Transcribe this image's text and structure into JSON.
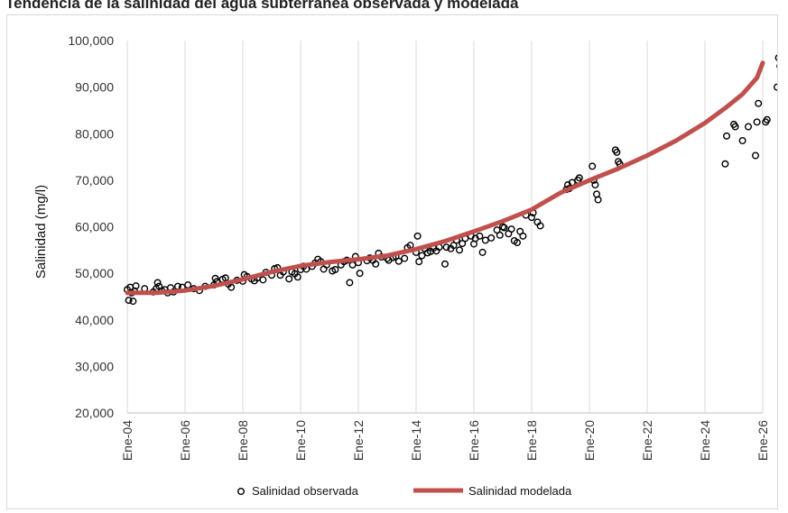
{
  "header": {
    "title": "Tendencia de la salinidad del agua subterránea observada y modelada"
  },
  "chart_data": {
    "type": "scatter",
    "xlabel": "",
    "ylabel": "Salinidad (mg/l)",
    "xlim": [
      2004,
      2026
    ],
    "ylim": [
      20000,
      100000
    ],
    "yticks": [
      20000,
      30000,
      40000,
      50000,
      60000,
      70000,
      80000,
      90000,
      100000
    ],
    "ytick_labels": [
      "20,000",
      "30,000",
      "40,000",
      "50,000",
      "60,000",
      "70,000",
      "80,000",
      "90,000",
      "100,000"
    ],
    "xticks": [
      2004,
      2006,
      2008,
      2010,
      2012,
      2014,
      2016,
      2018,
      2020,
      2022,
      2024,
      2026
    ],
    "xtick_labels": [
      "Ene-04",
      "Ene-06",
      "Ene-08",
      "Ene-10",
      "Ene-12",
      "Ene-14",
      "Ene-16",
      "Ene-18",
      "Ene-20",
      "Ene-22",
      "Ene-24",
      "Ene-26"
    ],
    "grid": "vertical",
    "legend": "bottom",
    "colors": {
      "model_line": "#c0504d",
      "observed_marker": "#000000",
      "grid": "#d9d9d9"
    },
    "series": [
      {
        "name": "Salinidad observada",
        "marker": "open-circle",
        "points": [
          [
            2004.0,
            46500
          ],
          [
            2004.05,
            44200
          ],
          [
            2004.1,
            47000
          ],
          [
            2004.15,
            45800
          ],
          [
            2004.2,
            44000
          ],
          [
            2004.25,
            46200
          ],
          [
            2004.3,
            47300
          ],
          [
            2004.6,
            46700
          ],
          [
            2004.9,
            46000
          ],
          [
            2005.0,
            46700
          ],
          [
            2005.05,
            48000
          ],
          [
            2005.1,
            47200
          ],
          [
            2005.2,
            46200
          ],
          [
            2005.3,
            46500
          ],
          [
            2005.4,
            45800
          ],
          [
            2005.5,
            46900
          ],
          [
            2005.6,
            46000
          ],
          [
            2005.75,
            47200
          ],
          [
            2005.9,
            47000
          ],
          [
            2006.1,
            47500
          ],
          [
            2006.3,
            46700
          ],
          [
            2006.5,
            46300
          ],
          [
            2006.7,
            47200
          ],
          [
            2007.0,
            47500
          ],
          [
            2007.05,
            48900
          ],
          [
            2007.1,
            48200
          ],
          [
            2007.3,
            48700
          ],
          [
            2007.4,
            49000
          ],
          [
            2007.5,
            47700
          ],
          [
            2007.6,
            47000
          ],
          [
            2007.8,
            48500
          ],
          [
            2008.0,
            48300
          ],
          [
            2008.05,
            49700
          ],
          [
            2008.15,
            49300
          ],
          [
            2008.3,
            48800
          ],
          [
            2008.4,
            48400
          ],
          [
            2008.5,
            49000
          ],
          [
            2008.7,
            48600
          ],
          [
            2008.8,
            50200
          ],
          [
            2009.0,
            49600
          ],
          [
            2009.1,
            51000
          ],
          [
            2009.2,
            51200
          ],
          [
            2009.3,
            49600
          ],
          [
            2009.4,
            50300
          ],
          [
            2009.6,
            48800
          ],
          [
            2009.7,
            50300
          ],
          [
            2009.8,
            49900
          ],
          [
            2009.9,
            49200
          ],
          [
            2010.0,
            50800
          ],
          [
            2010.1,
            51500
          ],
          [
            2010.2,
            50900
          ],
          [
            2010.4,
            51500
          ],
          [
            2010.5,
            52200
          ],
          [
            2010.6,
            53000
          ],
          [
            2010.7,
            52500
          ],
          [
            2010.8,
            50900
          ],
          [
            2010.9,
            51800
          ],
          [
            2011.1,
            50500
          ],
          [
            2011.2,
            50800
          ],
          [
            2011.4,
            51800
          ],
          [
            2011.5,
            52500
          ],
          [
            2011.6,
            52800
          ],
          [
            2011.7,
            48000
          ],
          [
            2011.8,
            51800
          ],
          [
            2011.9,
            53600
          ],
          [
            2012.0,
            52300
          ],
          [
            2012.05,
            50000
          ],
          [
            2012.3,
            52700
          ],
          [
            2012.4,
            53300
          ],
          [
            2012.5,
            52800
          ],
          [
            2012.6,
            52000
          ],
          [
            2012.7,
            54300
          ],
          [
            2012.8,
            53500
          ],
          [
            2013.0,
            53200
          ],
          [
            2013.05,
            52800
          ],
          [
            2013.2,
            53400
          ],
          [
            2013.3,
            53600
          ],
          [
            2013.4,
            52600
          ],
          [
            2013.6,
            53200
          ],
          [
            2013.7,
            55500
          ],
          [
            2013.8,
            56000
          ],
          [
            2014.0,
            54500
          ],
          [
            2014.05,
            58000
          ],
          [
            2014.1,
            52500
          ],
          [
            2014.2,
            53800
          ],
          [
            2014.3,
            55300
          ],
          [
            2014.4,
            54400
          ],
          [
            2014.5,
            54700
          ],
          [
            2014.6,
            55400
          ],
          [
            2014.7,
            54800
          ],
          [
            2014.8,
            55600
          ],
          [
            2015.0,
            52000
          ],
          [
            2015.05,
            55600
          ],
          [
            2015.2,
            55300
          ],
          [
            2015.3,
            56000
          ],
          [
            2015.4,
            57100
          ],
          [
            2015.5,
            55000
          ],
          [
            2015.6,
            56400
          ],
          [
            2015.7,
            57500
          ],
          [
            2015.9,
            58000
          ],
          [
            2016.0,
            56300
          ],
          [
            2016.05,
            57500
          ],
          [
            2016.2,
            58000
          ],
          [
            2016.3,
            54500
          ],
          [
            2016.4,
            57100
          ],
          [
            2016.6,
            57600
          ],
          [
            2016.8,
            59300
          ],
          [
            2016.9,
            58200
          ],
          [
            2017.0,
            60000
          ],
          [
            2017.05,
            59800
          ],
          [
            2017.2,
            58500
          ],
          [
            2017.3,
            59500
          ],
          [
            2017.4,
            57000
          ],
          [
            2017.5,
            56600
          ],
          [
            2017.6,
            59000
          ],
          [
            2017.7,
            58000
          ],
          [
            2017.8,
            62500
          ],
          [
            2018.0,
            62000
          ],
          [
            2018.05,
            63000
          ],
          [
            2018.2,
            61000
          ],
          [
            2018.3,
            60200
          ],
          [
            2019.2,
            68000
          ],
          [
            2019.25,
            69000
          ],
          [
            2019.3,
            68200
          ],
          [
            2019.4,
            69500
          ],
          [
            2019.6,
            70000
          ],
          [
            2019.65,
            70500
          ],
          [
            2020.1,
            73000
          ],
          [
            2020.15,
            70000
          ],
          [
            2020.2,
            69000
          ],
          [
            2020.25,
            67000
          ],
          [
            2020.3,
            65800
          ],
          [
            2020.9,
            76500
          ],
          [
            2020.95,
            76000
          ],
          [
            2021.0,
            74000
          ],
          [
            2021.05,
            73500
          ],
          [
            2024.7,
            73500
          ],
          [
            2024.75,
            79500
          ],
          [
            2025.0,
            82000
          ],
          [
            2025.05,
            81500
          ],
          [
            2025.3,
            78500
          ],
          [
            2025.5,
            81500
          ],
          [
            2025.75,
            75300
          ],
          [
            2025.8,
            82500
          ],
          [
            2025.85,
            86500
          ],
          [
            2026.1,
            82500
          ],
          [
            2026.15,
            83000
          ],
          [
            2026.5,
            90000
          ],
          [
            2026.55,
            96300
          ],
          [
            2026.6,
            94500
          ],
          [
            2026.7,
            88500
          ],
          [
            2026.75,
            90500
          ],
          [
            2026.9,
            89500
          ],
          [
            2026.95,
            82200
          ]
        ]
      },
      {
        "name": "Salinidad modelada",
        "style": "thick-line",
        "points": [
          [
            2004.0,
            45800
          ],
          [
            2005.0,
            45800
          ],
          [
            2006.0,
            46300
          ],
          [
            2007.0,
            47300
          ],
          [
            2008.0,
            48700
          ],
          [
            2009.0,
            50300
          ],
          [
            2010.0,
            51600
          ],
          [
            2011.0,
            52400
          ],
          [
            2012.0,
            53000
          ],
          [
            2013.0,
            53800
          ],
          [
            2014.0,
            55200
          ],
          [
            2015.0,
            56900
          ],
          [
            2016.0,
            59000
          ],
          [
            2017.0,
            61200
          ],
          [
            2018.0,
            63700
          ],
          [
            2019.0,
            67300
          ],
          [
            2020.0,
            70000
          ],
          [
            2021.0,
            72500
          ],
          [
            2022.0,
            75300
          ],
          [
            2023.0,
            78500
          ],
          [
            2024.0,
            82300
          ],
          [
            2024.7,
            85500
          ],
          [
            2025.3,
            88500
          ],
          [
            2025.8,
            92000
          ],
          [
            2026.0,
            95200
          ]
        ]
      }
    ]
  }
}
